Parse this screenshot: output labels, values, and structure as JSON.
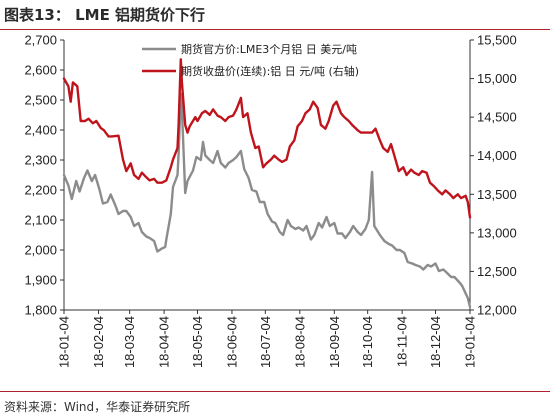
{
  "figure_title": "图表13：  LME 铝期货价下行",
  "source_note": "资料来源：Wind，华泰证券研究所",
  "chart_data": {
    "type": "line",
    "title": "",
    "x_tick_labels": [
      "18-01-04",
      "18-02-04",
      "18-03-04",
      "18-04-04",
      "18-05-04",
      "18-06-04",
      "18-07-04",
      "18-08-04",
      "18-09-04",
      "18-10-04",
      "18-11-04",
      "18-12-04",
      "19-01-04"
    ],
    "x_range": [
      "2018-01-04",
      "2019-01-04"
    ],
    "left_axis": {
      "ylim": [
        1800,
        2700
      ],
      "ticks": [
        "1,800",
        "1,900",
        "2,000",
        "2,100",
        "2,200",
        "2,300",
        "2,400",
        "2,500",
        "2,600",
        "2,700"
      ]
    },
    "right_axis": {
      "ylim": [
        12000,
        15500
      ],
      "ticks": [
        "12,000",
        "12,500",
        "13,000",
        "13,500",
        "14,000",
        "14,500",
        "15,000",
        "15,500"
      ]
    },
    "legend_placement": "top-center",
    "grid": false,
    "series": [
      {
        "name": "期货官方价:LME3个月铝 日 美元/吨",
        "axis": "left",
        "color": "#8c8c8c",
        "points": [
          [
            "2018-01-04",
            2250
          ],
          [
            "2018-01-08",
            2215
          ],
          [
            "2018-01-11",
            2170
          ],
          [
            "2018-01-15",
            2230
          ],
          [
            "2018-01-18",
            2195
          ],
          [
            "2018-01-22",
            2240
          ],
          [
            "2018-01-25",
            2265
          ],
          [
            "2018-01-29",
            2230
          ],
          [
            "2018-02-01",
            2250
          ],
          [
            "2018-02-05",
            2200
          ],
          [
            "2018-02-08",
            2155
          ],
          [
            "2018-02-12",
            2160
          ],
          [
            "2018-02-15",
            2185
          ],
          [
            "2018-02-19",
            2150
          ],
          [
            "2018-02-22",
            2120
          ],
          [
            "2018-02-26",
            2130
          ],
          [
            "2018-03-01",
            2130
          ],
          [
            "2018-03-05",
            2110
          ],
          [
            "2018-03-08",
            2080
          ],
          [
            "2018-03-12",
            2090
          ],
          [
            "2018-03-15",
            2060
          ],
          [
            "2018-03-19",
            2045
          ],
          [
            "2018-03-22",
            2040
          ],
          [
            "2018-03-26",
            2030
          ],
          [
            "2018-03-29",
            1995
          ],
          [
            "2018-04-02",
            2005
          ],
          [
            "2018-04-05",
            2010
          ],
          [
            "2018-04-06",
            2035
          ],
          [
            "2018-04-10",
            2120
          ],
          [
            "2018-04-12",
            2210
          ],
          [
            "2018-04-16",
            2250
          ],
          [
            "2018-04-17",
            2320
          ],
          [
            "2018-04-19",
            2520
          ],
          [
            "2018-04-20",
            2470
          ],
          [
            "2018-04-23",
            2190
          ],
          [
            "2018-04-25",
            2230
          ],
          [
            "2018-04-30",
            2265
          ],
          [
            "2018-05-03",
            2310
          ],
          [
            "2018-05-07",
            2300
          ],
          [
            "2018-05-09",
            2360
          ],
          [
            "2018-05-11",
            2315
          ],
          [
            "2018-05-15",
            2300
          ],
          [
            "2018-05-18",
            2290
          ],
          [
            "2018-05-22",
            2330
          ],
          [
            "2018-05-25",
            2290
          ],
          [
            "2018-05-29",
            2275
          ],
          [
            "2018-06-01",
            2290
          ],
          [
            "2018-06-05",
            2300
          ],
          [
            "2018-06-08",
            2310
          ],
          [
            "2018-06-12",
            2330
          ],
          [
            "2018-06-15",
            2270
          ],
          [
            "2018-06-19",
            2240
          ],
          [
            "2018-06-22",
            2200
          ],
          [
            "2018-06-26",
            2195
          ],
          [
            "2018-06-29",
            2160
          ],
          [
            "2018-07-03",
            2160
          ],
          [
            "2018-07-06",
            2120
          ],
          [
            "2018-07-10",
            2095
          ],
          [
            "2018-07-13",
            2090
          ],
          [
            "2018-07-17",
            2060
          ],
          [
            "2018-07-20",
            2050
          ],
          [
            "2018-07-24",
            2100
          ],
          [
            "2018-07-27",
            2080
          ],
          [
            "2018-07-31",
            2070
          ],
          [
            "2018-08-03",
            2075
          ],
          [
            "2018-08-07",
            2065
          ],
          [
            "2018-08-10",
            2080
          ],
          [
            "2018-08-14",
            2035
          ],
          [
            "2018-08-17",
            2050
          ],
          [
            "2018-08-21",
            2090
          ],
          [
            "2018-08-24",
            2075
          ],
          [
            "2018-08-28",
            2110
          ],
          [
            "2018-08-31",
            2080
          ],
          [
            "2018-09-04",
            2090
          ],
          [
            "2018-09-07",
            2055
          ],
          [
            "2018-09-11",
            2055
          ],
          [
            "2018-09-14",
            2040
          ],
          [
            "2018-09-18",
            2060
          ],
          [
            "2018-09-21",
            2080
          ],
          [
            "2018-09-25",
            2060
          ],
          [
            "2018-09-28",
            2050
          ],
          [
            "2018-10-02",
            2070
          ],
          [
            "2018-10-05",
            2100
          ],
          [
            "2018-10-08",
            2260
          ],
          [
            "2018-10-10",
            2080
          ],
          [
            "2018-10-15",
            2050
          ],
          [
            "2018-10-19",
            2030
          ],
          [
            "2018-10-23",
            2020
          ],
          [
            "2018-10-26",
            2015
          ],
          [
            "2018-10-30",
            2000
          ],
          [
            "2018-11-02",
            2000
          ],
          [
            "2018-11-06",
            1990
          ],
          [
            "2018-11-09",
            1960
          ],
          [
            "2018-11-13",
            1955
          ],
          [
            "2018-11-16",
            1950
          ],
          [
            "2018-11-20",
            1945
          ],
          [
            "2018-11-23",
            1935
          ],
          [
            "2018-11-27",
            1950
          ],
          [
            "2018-11-30",
            1945
          ],
          [
            "2018-12-04",
            1955
          ],
          [
            "2018-12-07",
            1930
          ],
          [
            "2018-12-11",
            1935
          ],
          [
            "2018-12-14",
            1925
          ],
          [
            "2018-12-18",
            1910
          ],
          [
            "2018-12-21",
            1910
          ],
          [
            "2018-12-26",
            1890
          ],
          [
            "2018-12-28",
            1880
          ],
          [
            "2019-01-02",
            1840
          ],
          [
            "2019-01-04",
            1810
          ]
        ]
      },
      {
        "name": "期货收盘价(连续):铝 日 元/吨 (右轴)",
        "axis": "right",
        "color": "#c0141c",
        "points": [
          [
            "2018-01-04",
            15000
          ],
          [
            "2018-01-08",
            14900
          ],
          [
            "2018-01-10",
            14700
          ],
          [
            "2018-01-12",
            14950
          ],
          [
            "2018-01-16",
            14900
          ],
          [
            "2018-01-19",
            14450
          ],
          [
            "2018-01-23",
            14450
          ],
          [
            "2018-01-26",
            14480
          ],
          [
            "2018-01-30",
            14420
          ],
          [
            "2018-02-02",
            14450
          ],
          [
            "2018-02-06",
            14360
          ],
          [
            "2018-02-09",
            14330
          ],
          [
            "2018-02-13",
            14250
          ],
          [
            "2018-02-16",
            14250
          ],
          [
            "2018-02-22",
            14260
          ],
          [
            "2018-02-26",
            13950
          ],
          [
            "2018-03-01",
            13800
          ],
          [
            "2018-03-05",
            13900
          ],
          [
            "2018-03-08",
            13750
          ],
          [
            "2018-03-12",
            13700
          ],
          [
            "2018-03-15",
            13780
          ],
          [
            "2018-03-19",
            13720
          ],
          [
            "2018-03-22",
            13680
          ],
          [
            "2018-03-26",
            13700
          ],
          [
            "2018-03-29",
            13650
          ],
          [
            "2018-04-02",
            13650
          ],
          [
            "2018-04-06",
            13680
          ],
          [
            "2018-04-10",
            13850
          ],
          [
            "2018-04-12",
            13950
          ],
          [
            "2018-04-16",
            14100
          ],
          [
            "2018-04-17",
            14400
          ],
          [
            "2018-04-19",
            15250
          ],
          [
            "2018-04-20",
            14950
          ],
          [
            "2018-04-23",
            14400
          ],
          [
            "2018-04-25",
            14300
          ],
          [
            "2018-04-27",
            14380
          ],
          [
            "2018-05-02",
            14500
          ],
          [
            "2018-05-04",
            14450
          ],
          [
            "2018-05-08",
            14550
          ],
          [
            "2018-05-11",
            14580
          ],
          [
            "2018-05-15",
            14530
          ],
          [
            "2018-05-18",
            14600
          ],
          [
            "2018-05-22",
            14520
          ],
          [
            "2018-05-25",
            14500
          ],
          [
            "2018-05-29",
            14450
          ],
          [
            "2018-06-01",
            14500
          ],
          [
            "2018-06-05",
            14520
          ],
          [
            "2018-06-08",
            14600
          ],
          [
            "2018-06-12",
            14750
          ],
          [
            "2018-06-14",
            14500
          ],
          [
            "2018-06-18",
            14550
          ],
          [
            "2018-06-21",
            14300
          ],
          [
            "2018-06-25",
            14100
          ],
          [
            "2018-06-28",
            14120
          ],
          [
            "2018-07-02",
            13850
          ],
          [
            "2018-07-05",
            13900
          ],
          [
            "2018-07-09",
            13950
          ],
          [
            "2018-07-12",
            14000
          ],
          [
            "2018-07-16",
            13950
          ],
          [
            "2018-07-19",
            13920
          ],
          [
            "2018-07-23",
            13950
          ],
          [
            "2018-07-26",
            14120
          ],
          [
            "2018-07-30",
            14200
          ],
          [
            "2018-08-02",
            14380
          ],
          [
            "2018-08-06",
            14450
          ],
          [
            "2018-08-09",
            14550
          ],
          [
            "2018-08-13",
            14600
          ],
          [
            "2018-08-16",
            14700
          ],
          [
            "2018-08-20",
            14620
          ],
          [
            "2018-08-23",
            14400
          ],
          [
            "2018-08-27",
            14350
          ],
          [
            "2018-08-30",
            14450
          ],
          [
            "2018-09-03",
            14650
          ],
          [
            "2018-09-06",
            14700
          ],
          [
            "2018-09-10",
            14550
          ],
          [
            "2018-09-13",
            14500
          ],
          [
            "2018-09-17",
            14450
          ],
          [
            "2018-09-20",
            14400
          ],
          [
            "2018-09-25",
            14330
          ],
          [
            "2018-09-28",
            14300
          ],
          [
            "2018-10-08",
            14300
          ],
          [
            "2018-10-11",
            14350
          ],
          [
            "2018-10-15",
            14200
          ],
          [
            "2018-10-18",
            14100
          ],
          [
            "2018-10-22",
            14050
          ],
          [
            "2018-10-25",
            14150
          ],
          [
            "2018-10-29",
            13950
          ],
          [
            "2018-11-01",
            13800
          ],
          [
            "2018-11-05",
            13850
          ],
          [
            "2018-11-08",
            13750
          ],
          [
            "2018-11-12",
            13820
          ],
          [
            "2018-11-15",
            13780
          ],
          [
            "2018-11-19",
            13750
          ],
          [
            "2018-11-22",
            13800
          ],
          [
            "2018-11-26",
            13780
          ],
          [
            "2018-11-29",
            13650
          ],
          [
            "2018-12-03",
            13600
          ],
          [
            "2018-12-06",
            13550
          ],
          [
            "2018-12-10",
            13500
          ],
          [
            "2018-12-13",
            13550
          ],
          [
            "2018-12-17",
            13500
          ],
          [
            "2018-12-20",
            13450
          ],
          [
            "2018-12-24",
            13500
          ],
          [
            "2018-12-27",
            13450
          ],
          [
            "2018-12-31",
            13480
          ],
          [
            "2019-01-02",
            13400
          ],
          [
            "2019-01-04",
            13200
          ]
        ]
      }
    ]
  }
}
